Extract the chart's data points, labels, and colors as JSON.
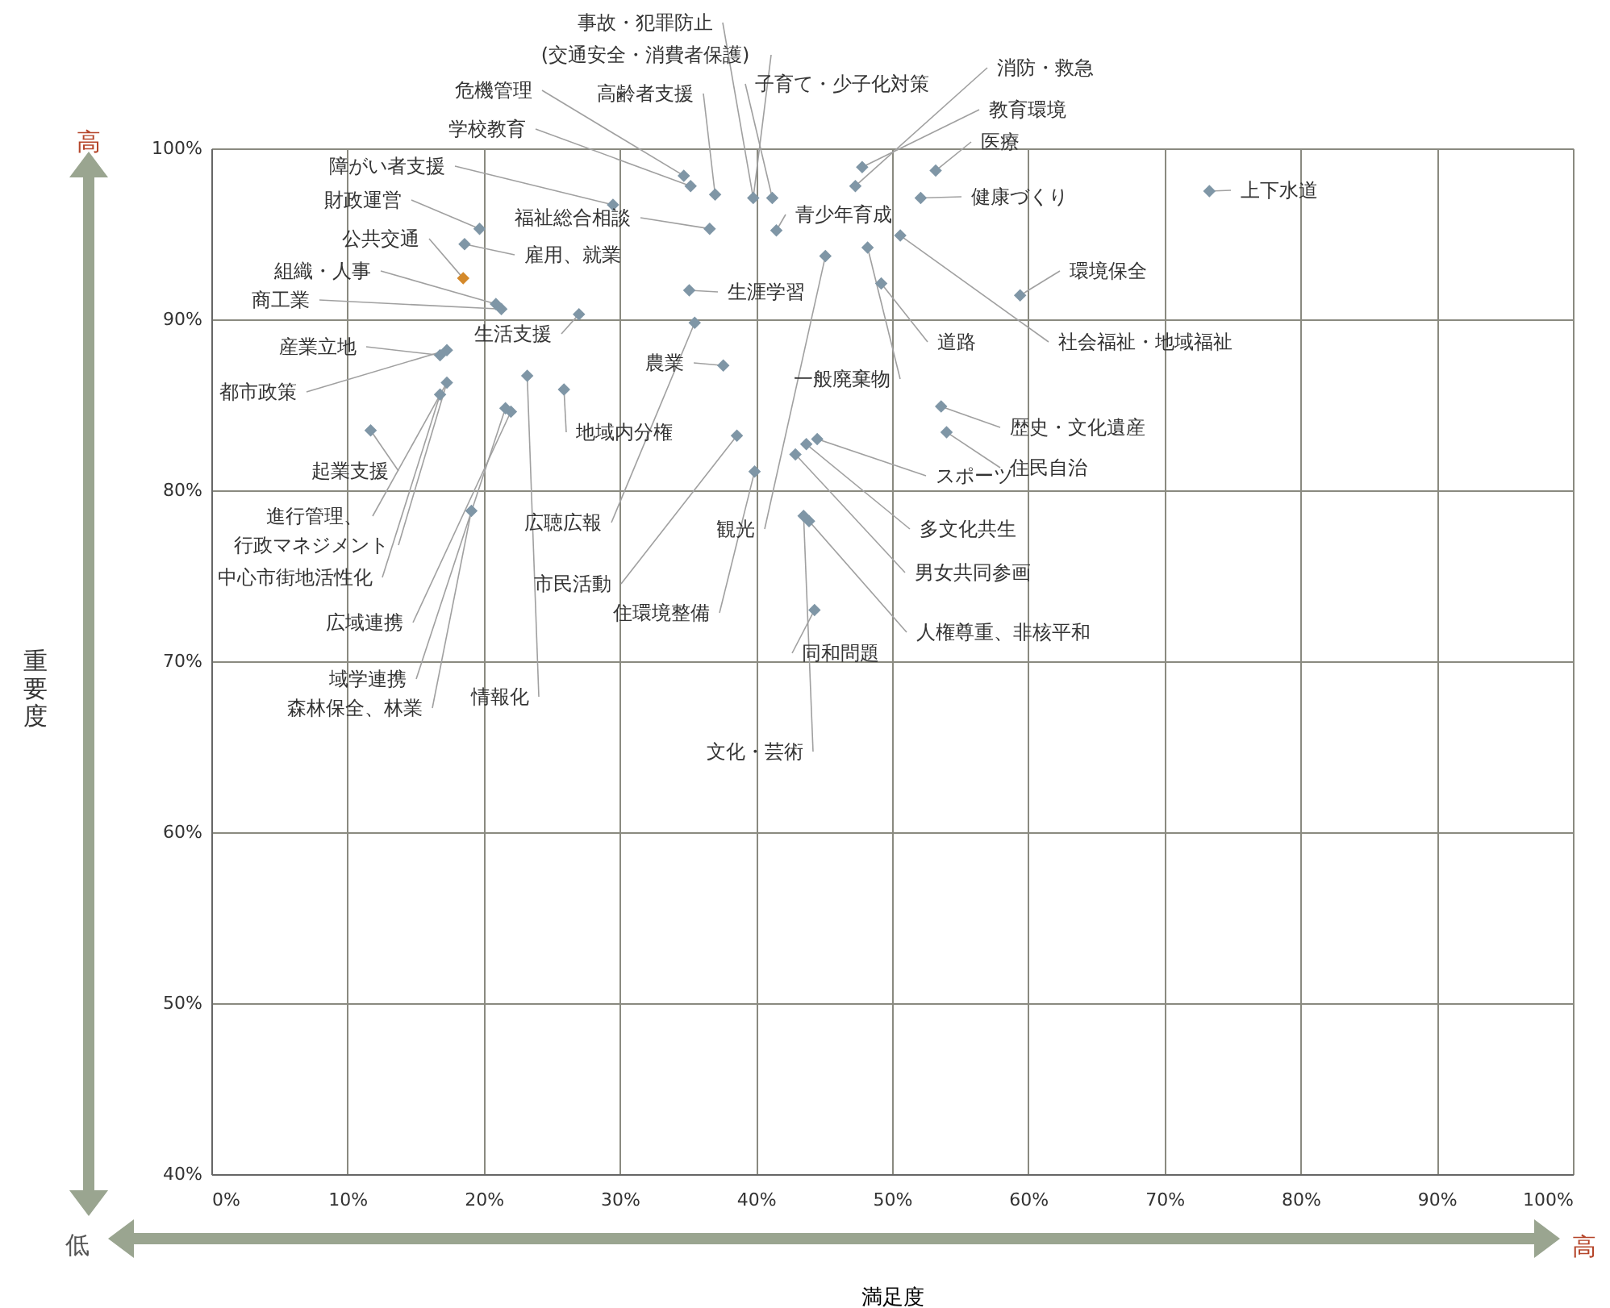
{
  "chart_data": {
    "type": "scatter",
    "xlabel": "満足度",
    "xlim": [
      0,
      100
    ],
    "ylim": [
      40,
      100
    ],
    "xticks": [
      {
        "value": 0,
        "label": "0%"
      },
      {
        "value": 10,
        "label": "10%"
      },
      {
        "value": 20,
        "label": "20%"
      },
      {
        "value": 30,
        "label": "30%"
      },
      {
        "value": 40,
        "label": "40%"
      },
      {
        "value": 50,
        "label": "50%"
      },
      {
        "value": 60,
        "label": "60%"
      },
      {
        "value": 70,
        "label": "70%"
      },
      {
        "value": 80,
        "label": "80%"
      },
      {
        "value": 90,
        "label": "90%"
      },
      {
        "value": 100,
        "label": "100%"
      }
    ],
    "yticks": [
      {
        "value": 40,
        "label": "40%"
      },
      {
        "value": 50,
        "label": "50%"
      },
      {
        "value": 60,
        "label": "60%"
      },
      {
        "value": 70,
        "label": "70%"
      },
      {
        "value": 80,
        "label": "80%"
      },
      {
        "value": 90,
        "label": "90%"
      },
      {
        "value": 100,
        "label": "100%"
      }
    ],
    "grid": true,
    "legend": false,
    "marker": "diamond",
    "x": [
      73.3,
      59.4,
      52.1,
      53.2,
      47.8,
      47.3,
      41.2,
      39.8,
      37.0,
      34.7,
      35.2,
      29.5,
      19.7,
      18.5,
      18.6,
      20.9,
      21.3,
      36.6,
      41.5,
      35.1,
      27.0,
      16.8,
      17.3,
      37.6,
      48.2,
      49.2,
      50.6,
      25.9,
      53.6,
      54.0,
      44.5,
      11.7,
      17.3,
      35.5,
      45.1,
      43.7,
      16.8,
      38.6,
      39.9,
      42.9,
      22.0,
      43.9,
      44.3,
      21.6,
      19.1,
      23.2,
      43.5
    ],
    "values": [
      97.5,
      91.4,
      97.1,
      98.7,
      98.9,
      97.8,
      97.1,
      97.1,
      97.3,
      98.4,
      97.8,
      96.7,
      95.3,
      92.4,
      94.4,
      90.9,
      90.6,
      95.3,
      95.2,
      91.7,
      90.3,
      87.9,
      88.2,
      87.3,
      94.2,
      92.1,
      94.9,
      85.9,
      84.9,
      83.4,
      83.0,
      83.5,
      86.3,
      89.8,
      93.7,
      82.7,
      85.6,
      83.2,
      81.1,
      82.1,
      84.6,
      78.2,
      73.0,
      84.8,
      78.8,
      86.7,
      78.5
    ],
    "colors": [
      "#7f96a6",
      "#7f96a6",
      "#7f96a6",
      "#7f96a6",
      "#7f96a6",
      "#7f96a6",
      "#7f96a6",
      "#7f96a6",
      "#7f96a6",
      "#7f96a6",
      "#7f96a6",
      "#7f96a6",
      "#7f96a6",
      "#d4892a",
      "#7f96a6",
      "#7f96a6",
      "#7f96a6",
      "#7f96a6",
      "#7f96a6",
      "#7f96a6",
      "#7f96a6",
      "#7f96a6",
      "#7f96a6",
      "#7f96a6",
      "#7f96a6",
      "#7f96a6",
      "#7f96a6",
      "#7f96a6",
      "#7f96a6",
      "#7f96a6",
      "#7f96a6",
      "#7f96a6",
      "#7f96a6",
      "#7f96a6",
      "#7f96a6",
      "#7f96a6",
      "#7f96a6",
      "#7f96a6",
      "#7f96a6",
      "#7f96a6",
      "#7f96a6",
      "#7f96a6",
      "#7f96a6",
      "#7f96a6",
      "#7f96a6",
      "#7f96a6",
      "#7f96a6"
    ],
    "annotations": [
      {
        "text": "上下水道",
        "x": 73.3,
        "y": 97.5
      },
      {
        "text": "環境保全",
        "x": 59.4,
        "y": 91.4
      },
      {
        "text": "健康づくり",
        "x": 52.1,
        "y": 97.1
      },
      {
        "text": "医療",
        "x": 53.2,
        "y": 98.7
      },
      {
        "text": "教育環境",
        "x": 47.8,
        "y": 98.9
      },
      {
        "text": "消防・救急",
        "x": 47.3,
        "y": 97.8
      },
      {
        "text": "子育て・少子化対策",
        "x": 41.2,
        "y": 97.1
      },
      {
        "text": "事故・犯罪防止",
        "x": 39.8,
        "y": 97.1
      },
      {
        "text": "(交通安全・消費者保護)",
        "x": 39.8,
        "y": 97.1
      },
      {
        "text": "高齢者支援",
        "x": 37.0,
        "y": 97.3
      },
      {
        "text": "危機管理",
        "x": 34.7,
        "y": 98.4
      },
      {
        "text": "学校教育",
        "x": 35.2,
        "y": 97.8
      },
      {
        "text": "障がい者支援",
        "x": 29.5,
        "y": 96.7
      },
      {
        "text": "財政運営",
        "x": 19.7,
        "y": 95.3
      },
      {
        "text": "公共交通",
        "x": 18.5,
        "y": 92.4
      },
      {
        "text": "雇用、就業",
        "x": 18.6,
        "y": 94.4
      },
      {
        "text": "組織・人事",
        "x": 20.9,
        "y": 90.9
      },
      {
        "text": "商工業",
        "x": 21.3,
        "y": 90.6
      },
      {
        "text": "福祉総合相談",
        "x": 36.6,
        "y": 95.3
      },
      {
        "text": "青少年育成",
        "x": 41.5,
        "y": 95.2
      },
      {
        "text": "生涯学習",
        "x": 35.1,
        "y": 91.7
      },
      {
        "text": "生活支援",
        "x": 27.0,
        "y": 90.3
      },
      {
        "text": "産業立地",
        "x": 16.8,
        "y": 87.9
      },
      {
        "text": "都市政策",
        "x": 17.3,
        "y": 88.2
      },
      {
        "text": "農業",
        "x": 37.6,
        "y": 87.3
      },
      {
        "text": "一般廃棄物",
        "x": 48.2,
        "y": 94.2
      },
      {
        "text": "道路",
        "x": 49.2,
        "y": 92.1
      },
      {
        "text": "社会福祉・地域福祉",
        "x": 50.6,
        "y": 94.9
      },
      {
        "text": "地域内分権",
        "x": 25.9,
        "y": 85.9
      },
      {
        "text": "歴史・文化遺産",
        "x": 53.6,
        "y": 84.9
      },
      {
        "text": "住民自治",
        "x": 54.0,
        "y": 83.4
      },
      {
        "text": "スポーツ",
        "x": 44.5,
        "y": 83.0
      },
      {
        "text": "起業支援",
        "x": 11.7,
        "y": 83.5
      },
      {
        "text": "進行管理、",
        "x": 17.3,
        "y": 86.3
      },
      {
        "text": "行政マネジメント",
        "x": 17.3,
        "y": 86.3
      },
      {
        "text": "広聴広報",
        "x": 35.5,
        "y": 89.8
      },
      {
        "text": "観光",
        "x": 45.1,
        "y": 93.7
      },
      {
        "text": "多文化共生",
        "x": 43.7,
        "y": 82.7
      },
      {
        "text": "中心市街地活性化",
        "x": 16.8,
        "y": 85.6
      },
      {
        "text": "市民活動",
        "x": 38.6,
        "y": 83.2
      },
      {
        "text": "住環境整備",
        "x": 39.9,
        "y": 81.1
      },
      {
        "text": "男女共同参画",
        "x": 42.9,
        "y": 82.1
      },
      {
        "text": "広域連携",
        "x": 22.0,
        "y": 84.6
      },
      {
        "text": "人権尊重、非核平和",
        "x": 43.9,
        "y": 78.2
      },
      {
        "text": "同和問題",
        "x": 44.3,
        "y": 73.0
      },
      {
        "text": "域学連携",
        "x": 21.6,
        "y": 84.8
      },
      {
        "text": "森林保全、林業",
        "x": 19.1,
        "y": 78.8
      },
      {
        "text": "情報化",
        "x": 23.2,
        "y": 86.7
      },
      {
        "text": "文化・芸術",
        "x": 43.5,
        "y": 78.5
      },
      "高",
      "低",
      "高",
      "重要度"
    ]
  }
}
